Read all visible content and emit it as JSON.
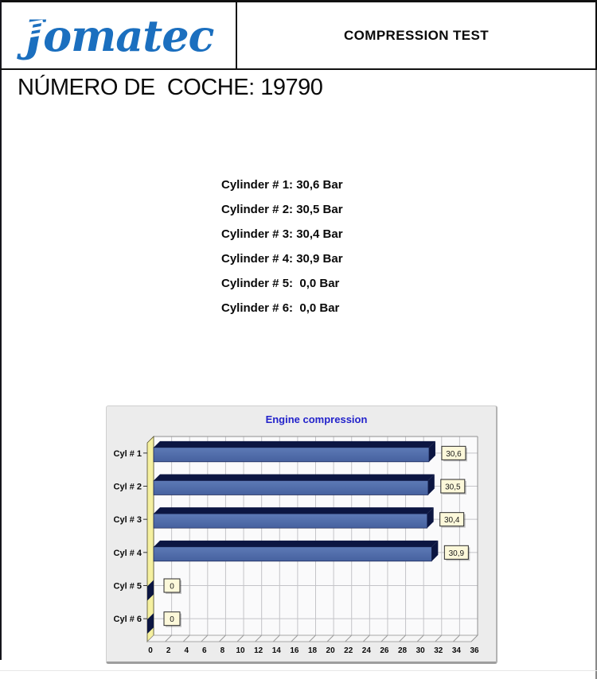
{
  "header": {
    "logo": "Jomatec",
    "title": "COMPRESSION TEST"
  },
  "car_number": {
    "label": "NÚMERO DE  COCHE: ",
    "value": "19790"
  },
  "cylinders": {
    "lines": [
      "Cylinder # 1: 30,6 Bar",
      "Cylinder # 2: 30,5 Bar",
      "Cylinder # 3: 30,4 Bar",
      "Cylinder # 4: 30,9 Bar",
      "Cylinder # 5:  0,0 Bar",
      "Cylinder # 6:  0,0 Bar"
    ]
  },
  "chart_data": {
    "type": "bar",
    "orientation": "horizontal",
    "title": "Engine compression",
    "categories": [
      "Cyl # 1",
      "Cyl # 2",
      "Cyl # 3",
      "Cyl # 4",
      "Cyl # 5",
      "Cyl # 6"
    ],
    "values": [
      30.6,
      30.5,
      30.4,
      30.9,
      0,
      0
    ],
    "value_labels": [
      "30,6",
      "30,5",
      "30,4",
      "30,9",
      "0",
      "0"
    ],
    "unit": "Bar",
    "xlim": [
      0,
      36
    ],
    "tick_step": 2,
    "grid": true,
    "legend": "none",
    "colors": {
      "bar_face_light": "#5d7ab6",
      "bar_face_dark": "#46619f",
      "bar_dark": "#0c1642",
      "wall_yellow": "#f5f0a0",
      "plot_bg": "#fafafb",
      "grid_line": "#c4c4c8",
      "plot_border": "#8f8f8f",
      "floor": "#f6f6f6",
      "label_box_bg": "#fcf8da",
      "label_box_border": "#2a2a2a",
      "title_color": "#2323cb",
      "axis_text": "#0a0a0a"
    }
  }
}
